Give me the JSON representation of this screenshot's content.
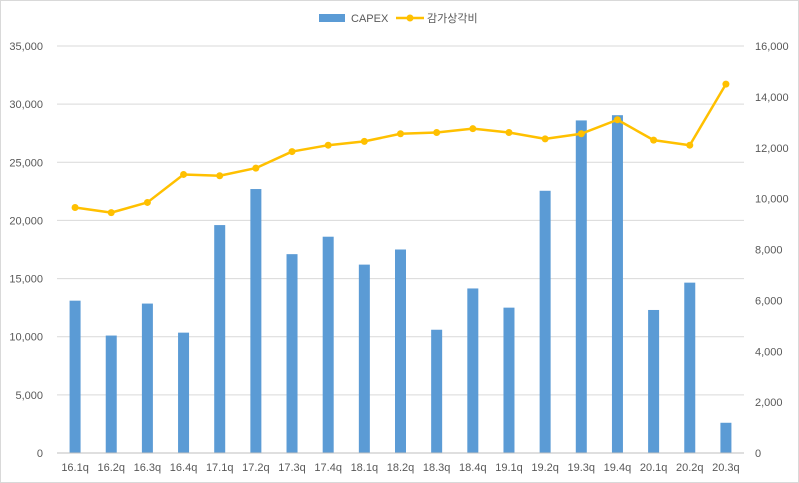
{
  "chart_data": {
    "type": "bar",
    "categories": [
      "16.1q",
      "16.2q",
      "16.3q",
      "16.4q",
      "17.1q",
      "17.2q",
      "17.3q",
      "17.4q",
      "18.1q",
      "18.2q",
      "18.3q",
      "18.4q",
      "19.1q",
      "19.2q",
      "19.3q",
      "19.4q",
      "20.1q",
      "20.2q",
      "20.3q"
    ],
    "series": [
      {
        "name": "CAPEX",
        "type": "bar",
        "axis": "left",
        "color": "#5b9bd5",
        "values": [
          13100,
          10100,
          12850,
          10350,
          19600,
          22700,
          17100,
          18600,
          16200,
          17500,
          10600,
          14150,
          12500,
          22550,
          28600,
          29050,
          12300,
          14650,
          2600
        ]
      },
      {
        "name": "감가상각비",
        "type": "line",
        "axis": "right",
        "color": "#ffc000",
        "values": [
          9650,
          9450,
          9850,
          10950,
          10900,
          11200,
          11850,
          12100,
          12250,
          12550,
          12600,
          12750,
          12600,
          12350,
          12550,
          13100,
          12300,
          12100,
          14500
        ]
      }
    ],
    "y_left": {
      "min": 0,
      "max": 35000,
      "step": 5000,
      "tick_labels": [
        "0",
        "5,000",
        "10,000",
        "15,000",
        "20,000",
        "25,000",
        "30,000",
        "35,000"
      ]
    },
    "y_right": {
      "min": 0,
      "max": 16000,
      "step": 2000,
      "tick_labels": [
        "0",
        "2,000",
        "4,000",
        "6,000",
        "8,000",
        "10,000",
        "12,000",
        "14,000",
        "16,000"
      ]
    },
    "grid": true,
    "legend_position": "top-center"
  }
}
